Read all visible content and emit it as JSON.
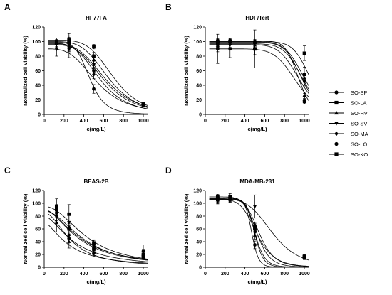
{
  "chart_data": [
    {
      "type": "line",
      "panel": "A",
      "title": "HF77FA",
      "xlabel": "c(mg/L)",
      "ylabel": "Normalized cell viability (%)",
      "xlim": [
        0,
        1050
      ],
      "ylim": [
        0,
        120
      ],
      "xticks": [
        0,
        200,
        400,
        600,
        800,
        1000
      ],
      "yticks": [
        0,
        20,
        40,
        60,
        80,
        100,
        120
      ],
      "x": [
        125,
        250,
        500,
        1000
      ],
      "series": [
        {
          "name": "SO-SP",
          "marker": "circle",
          "values": [
            98,
            97,
            60,
            13
          ],
          "errors": [
            3,
            5,
            5,
            2
          ],
          "ic50": 560,
          "hill": 4
        },
        {
          "name": "SO-LA",
          "marker": "square",
          "values": [
            100,
            102,
            93,
            14
          ],
          "errors": [
            3,
            4,
            3,
            2
          ],
          "ic50": 700,
          "hill": 5
        },
        {
          "name": "SO-HV",
          "marker": "triangle-up",
          "values": [
            97,
            95,
            75,
            13
          ],
          "errors": [
            4,
            5,
            5,
            2
          ],
          "ic50": 620,
          "hill": 4
        },
        {
          "name": "SO-SV",
          "marker": "triangle-down",
          "values": [
            96,
            92,
            68,
            13
          ],
          "errors": [
            5,
            6,
            5,
            2
          ],
          "ic50": 600,
          "hill": 4
        },
        {
          "name": "SO-MA",
          "marker": "diamond",
          "values": [
            90,
            90,
            55,
            13
          ],
          "errors": [
            10,
            12,
            6,
            2
          ],
          "ic50": 530,
          "hill": 3.5
        },
        {
          "name": "SO-LO",
          "marker": "circle",
          "values": [
            97,
            99,
            35,
            13
          ],
          "errors": [
            5,
            12,
            6,
            2
          ],
          "ic50": 460,
          "hill": 6
        },
        {
          "name": "SO-KO",
          "marker": "square",
          "values": [
            100,
            100,
            80,
            14
          ],
          "errors": [
            5,
            8,
            5,
            2
          ],
          "ic50": 650,
          "hill": 4.5
        }
      ]
    },
    {
      "type": "line",
      "panel": "B",
      "title": "HDF/Tert",
      "xlabel": "c(mg/L)",
      "ylabel": "Normalized cell viability (%)",
      "xlim": [
        0,
        1050
      ],
      "ylim": [
        0,
        120
      ],
      "xticks": [
        0,
        200,
        400,
        600,
        800,
        1000
      ],
      "yticks": [
        0,
        20,
        40,
        60,
        80,
        100,
        120
      ],
      "x": [
        125,
        250,
        500,
        1000
      ],
      "series": [
        {
          "name": "SO-SP",
          "marker": "circle",
          "values": [
            101,
            101,
            100,
            19
          ],
          "errors": [
            3,
            3,
            3,
            3
          ],
          "ic50": 940,
          "hill": 14
        },
        {
          "name": "SO-LA",
          "marker": "square",
          "values": [
            100,
            100,
            99,
            84
          ],
          "errors": [
            3,
            3,
            3,
            10
          ],
          "ic50": 1060,
          "hill": 12
        },
        {
          "name": "SO-HV",
          "marker": "triangle-up",
          "values": [
            95,
            97,
            95,
            50
          ],
          "errors": [
            5,
            5,
            6,
            6
          ],
          "ic50": 985,
          "hill": 10
        },
        {
          "name": "SO-SV",
          "marker": "triangle-down",
          "values": [
            97,
            99,
            98,
            45
          ],
          "errors": [
            4,
            4,
            4,
            6
          ],
          "ic50": 975,
          "hill": 11
        },
        {
          "name": "SO-MA",
          "marker": "diamond",
          "values": [
            92,
            96,
            90,
            25
          ],
          "errors": [
            6,
            6,
            8,
            4
          ],
          "ic50": 950,
          "hill": 9
        },
        {
          "name": "SO-LO",
          "marker": "circle",
          "values": [
            90,
            90,
            90,
            17
          ],
          "errors": [
            20,
            12,
            26,
            3
          ],
          "ic50": 920,
          "hill": 8
        },
        {
          "name": "SO-KO",
          "marker": "square",
          "values": [
            98,
            100,
            90,
            55
          ],
          "errors": [
            5,
            5,
            8,
            10
          ],
          "ic50": 1000,
          "hill": 10
        }
      ]
    },
    {
      "type": "line",
      "panel": "C",
      "title": "BEAS-2B",
      "xlabel": "c(mg/L)",
      "ylabel": "Normalized cell viability (%)",
      "xlim": [
        0,
        1050
      ],
      "ylim": [
        0,
        120
      ],
      "xticks": [
        0,
        200,
        400,
        600,
        800,
        1000
      ],
      "yticks": [
        0,
        20,
        40,
        60,
        80,
        100,
        120
      ],
      "x": [
        125,
        250,
        500,
        1000
      ],
      "series": [
        {
          "name": "SO-SP",
          "marker": "circle",
          "values": [
            90,
            62,
            35,
            18
          ],
          "errors": [
            6,
            10,
            5,
            3
          ],
          "ic50": 370,
          "hill": 1.8
        },
        {
          "name": "SO-LA",
          "marker": "square",
          "values": [
            90,
            60,
            30,
            20
          ],
          "errors": [
            8,
            10,
            5,
            8
          ],
          "ic50": 350,
          "hill": 1.8
        },
        {
          "name": "SO-HV",
          "marker": "triangle-up",
          "values": [
            70,
            40,
            28,
            15
          ],
          "errors": [
            15,
            10,
            5,
            3
          ],
          "ic50": 250,
          "hill": 1.6
        },
        {
          "name": "SO-SV",
          "marker": "triangle-down",
          "values": [
            88,
            70,
            36,
            16
          ],
          "errors": [
            10,
            12,
            6,
            3
          ],
          "ic50": 400,
          "hill": 2
        },
        {
          "name": "SO-MA",
          "marker": "diamond",
          "values": [
            80,
            50,
            32,
            15
          ],
          "errors": [
            14,
            15,
            5,
            3
          ],
          "ic50": 300,
          "hill": 1.7
        },
        {
          "name": "SO-LO",
          "marker": "circle",
          "values": [
            85,
            45,
            22,
            25
          ],
          "errors": [
            12,
            10,
            4,
            10
          ],
          "ic50": 270,
          "hill": 2
        },
        {
          "name": "SO-KO",
          "marker": "square",
          "values": [
            95,
            83,
            38,
            17
          ],
          "errors": [
            12,
            15,
            5,
            3
          ],
          "ic50": 430,
          "hill": 2.1
        }
      ]
    },
    {
      "type": "line",
      "panel": "D",
      "title": "MDA-MB-231",
      "xlabel": "c(mg/L)",
      "ylabel": "Normalized cell viability (%)",
      "xlim": [
        0,
        1050
      ],
      "ylim": [
        0,
        120
      ],
      "xticks": [
        0,
        200,
        400,
        600,
        800,
        1000
      ],
      "yticks": [
        0,
        20,
        40,
        60,
        80,
        100,
        120
      ],
      "x": [
        125,
        250,
        500,
        1000
      ],
      "series": [
        {
          "name": "SO-SP",
          "marker": "circle",
          "values": [
            108,
            108,
            65,
            16
          ],
          "errors": [
            4,
            4,
            5,
            3
          ],
          "ic50": 520,
          "hill": 8
        },
        {
          "name": "SO-LA",
          "marker": "square",
          "values": [
            108,
            108,
            60,
            17
          ],
          "errors": [
            4,
            4,
            5,
            3
          ],
          "ic50": 500,
          "hill": 10
        },
        {
          "name": "SO-HV",
          "marker": "triangle-up",
          "values": [
            105,
            106,
            50,
            15
          ],
          "errors": [
            4,
            4,
            6,
            3
          ],
          "ic50": 500,
          "hill": 12
        },
        {
          "name": "SO-SV",
          "marker": "triangle-down",
          "values": [
            106,
            107,
            95,
            16
          ],
          "errors": [
            4,
            4,
            18,
            3
          ],
          "ic50": 680,
          "hill": 5
        },
        {
          "name": "SO-MA",
          "marker": "diamond",
          "values": [
            104,
            106,
            55,
            15
          ],
          "errors": [
            5,
            4,
            6,
            3
          ],
          "ic50": 520,
          "hill": 6
        },
        {
          "name": "SO-LO",
          "marker": "circle",
          "values": [
            105,
            106,
            35,
            16
          ],
          "errors": [
            5,
            5,
            6,
            3
          ],
          "ic50": 470,
          "hill": 14
        },
        {
          "name": "SO-KO",
          "marker": "square",
          "values": [
            110,
            110,
            62,
            16
          ],
          "errors": [
            4,
            5,
            6,
            3
          ],
          "ic50": 540,
          "hill": 7
        }
      ]
    }
  ],
  "legend": {
    "placement": "right",
    "items": [
      {
        "label": "SO-SP",
        "marker": "circle"
      },
      {
        "label": "SO-LA",
        "marker": "square"
      },
      {
        "label": "SO-HV",
        "marker": "triangle-up"
      },
      {
        "label": "SO-SV",
        "marker": "triangle-down"
      },
      {
        "label": "SO-MA",
        "marker": "diamond"
      },
      {
        "label": "SO-LO",
        "marker": "circle"
      },
      {
        "label": "SO-KO",
        "marker": "square"
      }
    ]
  },
  "colors": {
    "ink": "#000000",
    "background": "#ffffff"
  }
}
